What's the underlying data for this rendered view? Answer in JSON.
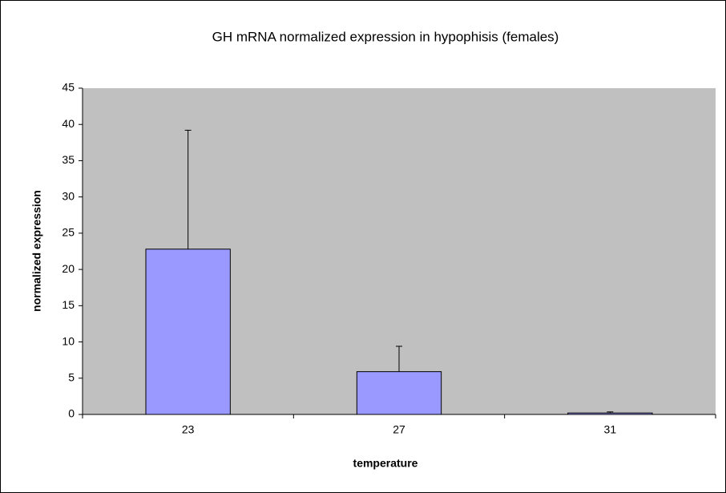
{
  "chart_data": {
    "type": "bar",
    "title": "GH mRNA normalized expression in hypophisis (females)",
    "xlabel": "temperature",
    "ylabel": "normalized expression",
    "categories": [
      "23",
      "27",
      "31"
    ],
    "values": [
      22.8,
      5.9,
      0.2
    ],
    "errors": [
      16.4,
      3.5,
      0.15
    ],
    "color": "#9999ff",
    "ylim": [
      0,
      45
    ],
    "yticks": [
      0,
      5,
      10,
      15,
      20,
      25,
      30,
      35,
      40,
      45
    ],
    "grid": false
  }
}
